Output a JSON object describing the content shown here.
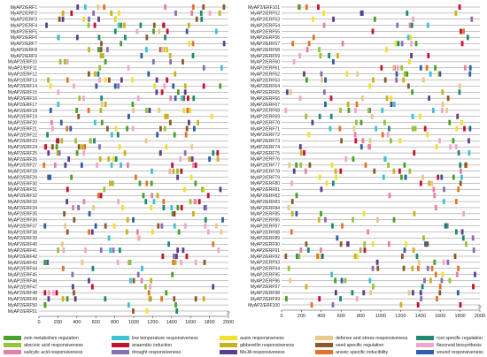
{
  "chart_data": [
    {
      "type": "diagram",
      "title": "",
      "x_range": [
        0,
        2000
      ],
      "x_ticks": [
        "0",
        "200",
        "400",
        "600",
        "800",
        "1000",
        "1200",
        "1400",
        "1600",
        "1800",
        "2000"
      ],
      "end_label": "3'",
      "genes": [
        "MyAP2/ERF1",
        "MyAP2/ERF2",
        "MyAP2/ERF3",
        "MyAP2/ERF4",
        "MyAP2/ERF5",
        "MyAP2/ERF6",
        "MyAP2/ERF7",
        "MyAP2/ERF8",
        "MyAP2/ERF9",
        "MyAP2/ERF10",
        "MyAP2/ERF11",
        "MyAP2/ERF12",
        "MyAP2/ERF13",
        "MyAP2/ERF14",
        "MyAP2/ERF15",
        "MyAP2/ERF16",
        "MyAP2/ERF17",
        "MyAP2/ERF18",
        "MyAP2/ERF19",
        "MyAP2/ERF20",
        "MyAP2/ERF21",
        "MyAP2/ERF22",
        "MyAP2/ERF23",
        "MyAP2/ERF24",
        "MyAP2/ERF25",
        "MyAP2/ERF26",
        "MyAP2/ERF27",
        "MyAP2/ERF28",
        "MyAP2/ERF29",
        "MyAP2/ERF30",
        "MyAP2/ERF31",
        "MyAP2/ERF32",
        "MyAP2/ERF33",
        "MyAP2/ERF34",
        "MyAP2/ERF35",
        "MyAP2/ERF36",
        "MyAP2/ERF37",
        "MyAP2/ERF38",
        "MyAP2/ERF39",
        "MyAP2/ERF40",
        "MyAP2/ERF41",
        "MyAP2/ERF42",
        "MyAP2/ERF43",
        "MyAP2/ERF44",
        "MyAP2/ERF45",
        "MyAP2/ERF46",
        "MyAP2/ERF47",
        "MyAP2/ERF48",
        "MyAP2/ERF49",
        "MyAP2/ERF50",
        "MyAP2/ERF51"
      ]
    },
    {
      "type": "diagram",
      "title": "",
      "x_range": [
        0,
        2000
      ],
      "x_ticks": [
        "0",
        "200",
        "400",
        "600",
        "800",
        "1000",
        "1200",
        "1400",
        "1600",
        "1800",
        "2000"
      ],
      "end_label": "3'",
      "genes": [
        "MyAP2/ERF101",
        "MyAP2/ERF52",
        "MyAP2/ERF53",
        "MyAP2/ERF54",
        "MyAP2/ERF55",
        "MyAP2/ERF56",
        "MyAP2/ERF57",
        "MyAP2/ERF58",
        "MyAP2/ERF59",
        "MyAP2/ERF60",
        "MyAP2/ERF61",
        "MyAP2/ERF62",
        "MyAP2/ERF63",
        "MyAP2/ERF64",
        "MyAP2/ERF65",
        "MyAP2/ERF66",
        "MyAP2/ERF67",
        "MyAP2/ERF68",
        "MyAP2/ERF69",
        "MyAP2/ERF70",
        "MyAP2/ERF71",
        "MyAP2/ERF72",
        "MyAP2/ERF73",
        "MyAP2/ERF74",
        "MyAP2/ERF75",
        "MyAP2/ERF76",
        "MyAP2/ERF77",
        "MyAP2/ERF78",
        "MyAP2/ERF79",
        "MyAP2/ERF80",
        "MyAP2/ERF81",
        "MyAP2/ERF82",
        "MyAP2/ERF83",
        "MyAP2/ERF84",
        "MyAP2/ERF85",
        "MyAP2/ERF86",
        "MyAP2/ERF87",
        "MyAP2/ERF88",
        "MyAP2/ERF89",
        "MyAP2/ERF90",
        "MyAP2/ERF91",
        "MyAP2/ERF92",
        "MyAP2/ERF93",
        "MyAP2/ERF94",
        "MyAP2/ERF95",
        "MyAP2/ERF96",
        "MyAP2/ERF97",
        "MyAP2/ERF98",
        "MyAP2/ERF99",
        "MyAP2/ERF100"
      ]
    }
  ],
  "legend": [
    {
      "label": "zein metabolism regulation",
      "color": "#4aa02c"
    },
    {
      "label": "abscisic acid responsiveness",
      "color": "#98c23a"
    },
    {
      "label": "salicylic acid responsiveness",
      "color": "#e87fa6"
    },
    {
      "label": "low temperature responsiveness",
      "color": "#3ec1d3"
    },
    {
      "label": "anaerobic induction",
      "color": "#c8102e"
    },
    {
      "label": "drought responsiveness",
      "color": "#8a6fb0"
    },
    {
      "label": "auxin responsiveness",
      "color": "#f2df2f"
    },
    {
      "label": "gibberellin responsiveness",
      "color": "#c9b21e"
    },
    {
      "label": "MeJA responsiveness",
      "color": "#5b3f8c"
    },
    {
      "label": "defense and stress responsiveness",
      "color": "#e7c98a"
    },
    {
      "label": "seed specific regulation",
      "color": "#8b5a2b"
    },
    {
      "label": "anoxic specific inducibility",
      "color": "#e0742a"
    },
    {
      "label": "root specific regulation",
      "color": "#1f8a70"
    },
    {
      "label": "flavonoid biosynthesis",
      "color": "#f3a6c8"
    },
    {
      "label": "wound responsiveness",
      "color": "#2e5fa8"
    }
  ]
}
